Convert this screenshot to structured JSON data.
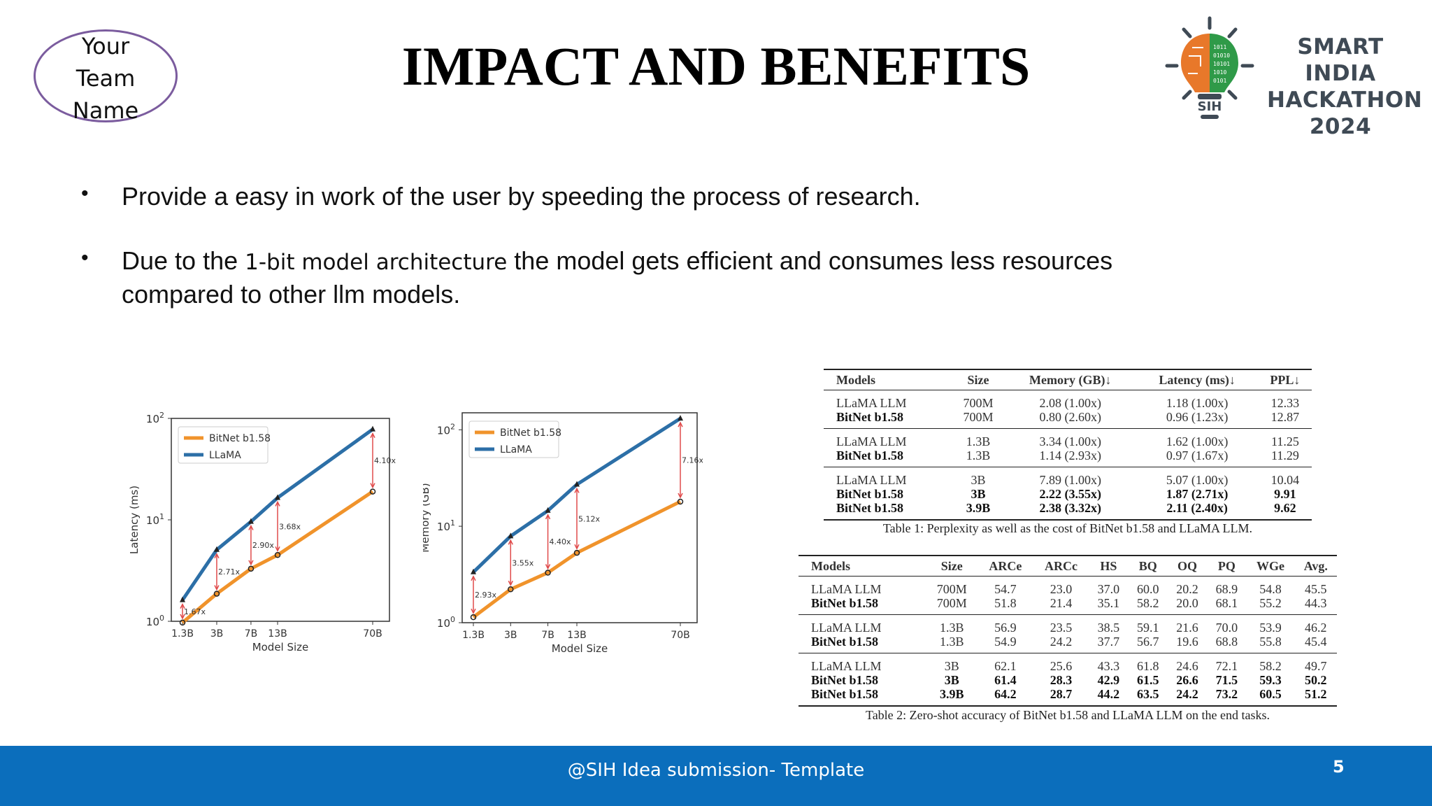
{
  "team_name": "Your Team Name",
  "title": "IMPACT AND BENEFITS",
  "logo": {
    "line1": "SMART INDIA",
    "line2": "HACKATHON",
    "line3": "2024",
    "badge": "SIH"
  },
  "bullets": {
    "b1": "Provide a easy in work of the user by speeding the process of research.",
    "b2_pre": "Due to the ",
    "b2_alt": "1-bit model architecture",
    "b2_post": " the model gets efficient and consumes less resources compared to other llm models."
  },
  "chart_data": [
    {
      "type": "line",
      "xlabel": "Model Size",
      "ylabel": "Latency (ms)",
      "categories": [
        "1.3B",
        "3B",
        "7B",
        "13B",
        "70B"
      ],
      "yscale": "log",
      "ylim": [
        1,
        100
      ],
      "yticks": [
        "10^0",
        "10^1",
        "10^2"
      ],
      "legend_position": "top-left",
      "series": [
        {
          "name": "BitNet b1.58",
          "color": "#f0932b",
          "values": [
            0.97,
            1.87,
            3.3,
            4.5,
            19
          ]
        },
        {
          "name": "LLaMA",
          "color": "#2c6fa7",
          "values": [
            1.62,
            5.07,
            9.6,
            16.5,
            78
          ]
        }
      ],
      "annotations": [
        "1.67x",
        "2.71x",
        "2.90x",
        "3.68x",
        "4.10x"
      ]
    },
    {
      "type": "line",
      "xlabel": "Model Size",
      "ylabel": "Memory (GB)",
      "categories": [
        "1.3B",
        "3B",
        "7B",
        "13B",
        "70B"
      ],
      "yscale": "log",
      "ylim": [
        1,
        150
      ],
      "yticks": [
        "10^0",
        "10^1",
        "10^2"
      ],
      "legend_position": "top-left",
      "series": [
        {
          "name": "BitNet b1.58",
          "color": "#f0932b",
          "values": [
            1.14,
            2.22,
            3.3,
            5.3,
            18
          ]
        },
        {
          "name": "LLaMA",
          "color": "#2c6fa7",
          "values": [
            3.34,
            7.89,
            14.5,
            27.1,
            131
          ]
        }
      ],
      "annotations": [
        "2.93x",
        "3.55x",
        "4.40x",
        "5.12x",
        "7.16x"
      ]
    }
  ],
  "table1": {
    "headers": [
      "Models",
      "Size",
      "Memory (GB)↓",
      "Latency (ms)↓",
      "PPL↓"
    ],
    "groups": [
      [
        [
          "LLaMA LLM",
          "700M",
          "2.08 (1.00x)",
          "1.18 (1.00x)",
          "12.33"
        ],
        [
          "BitNet b1.58",
          "700M",
          "0.80 (2.60x)",
          "0.96 (1.23x)",
          "12.87"
        ]
      ],
      [
        [
          "LLaMA LLM",
          "1.3B",
          "3.34 (1.00x)",
          "1.62 (1.00x)",
          "11.25"
        ],
        [
          "BitNet b1.58",
          "1.3B",
          "1.14 (2.93x)",
          "0.97 (1.67x)",
          "11.29"
        ]
      ],
      [
        [
          "LLaMA LLM",
          "3B",
          "7.89 (1.00x)",
          "5.07 (1.00x)",
          "10.04"
        ],
        [
          "BitNet b1.58",
          "3B",
          "2.22 (3.55x)",
          "1.87 (2.71x)",
          "9.91"
        ],
        [
          "BitNet b1.58",
          "3.9B",
          "2.38 (3.32x)",
          "2.11 (2.40x)",
          "9.62"
        ]
      ]
    ],
    "caption": "Table 1: Perplexity as well as the cost of BitNet b1.58 and LLaMA LLM."
  },
  "table2": {
    "headers": [
      "Models",
      "Size",
      "ARCe",
      "ARCc",
      "HS",
      "BQ",
      "OQ",
      "PQ",
      "WGe",
      "Avg."
    ],
    "groups": [
      [
        [
          "LLaMA LLM",
          "700M",
          "54.7",
          "23.0",
          "37.0",
          "60.0",
          "20.2",
          "68.9",
          "54.8",
          "45.5"
        ],
        [
          "BitNet b1.58",
          "700M",
          "51.8",
          "21.4",
          "35.1",
          "58.2",
          "20.0",
          "68.1",
          "55.2",
          "44.3"
        ]
      ],
      [
        [
          "LLaMA LLM",
          "1.3B",
          "56.9",
          "23.5",
          "38.5",
          "59.1",
          "21.6",
          "70.0",
          "53.9",
          "46.2"
        ],
        [
          "BitNet b1.58",
          "1.3B",
          "54.9",
          "24.2",
          "37.7",
          "56.7",
          "19.6",
          "68.8",
          "55.8",
          "45.4"
        ]
      ],
      [
        [
          "LLaMA LLM",
          "3B",
          "62.1",
          "25.6",
          "43.3",
          "61.8",
          "24.6",
          "72.1",
          "58.2",
          "49.7"
        ],
        [
          "BitNet b1.58",
          "3B",
          "61.4",
          "28.3",
          "42.9",
          "61.5",
          "26.6",
          "71.5",
          "59.3",
          "50.2"
        ],
        [
          "BitNet b1.58",
          "3.9B",
          "64.2",
          "28.7",
          "44.2",
          "63.5",
          "24.2",
          "73.2",
          "60.5",
          "51.2"
        ]
      ]
    ],
    "caption": "Table 2: Zero-shot accuracy of BitNet b1.58 and LLaMA LLM on the end tasks."
  },
  "footer": {
    "text": "@SIH Idea submission- Template",
    "page": "5"
  }
}
